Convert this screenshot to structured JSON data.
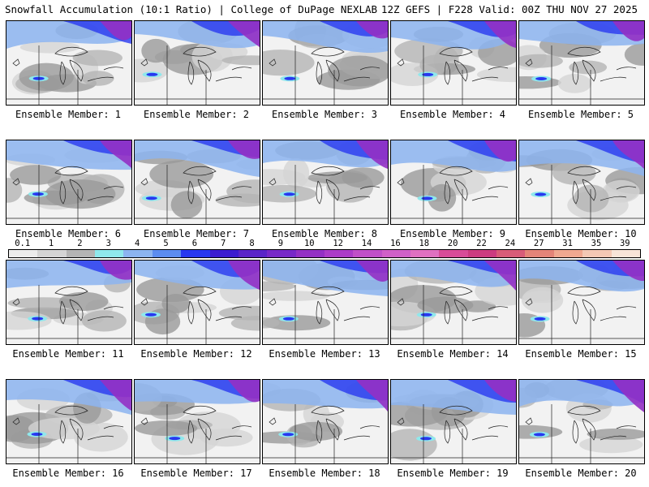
{
  "header": {
    "left_title": "Snowfall Accumulation (10:1 Ratio) | College of DuPage NEXLAB",
    "right_title": "12Z GEFS | F228 Valid: 00Z THU NOV 27 2025"
  },
  "members": [
    {
      "label": "Ensemble Member: 1"
    },
    {
      "label": "Ensemble Member: 2"
    },
    {
      "label": "Ensemble Member: 3"
    },
    {
      "label": "Ensemble Member: 4"
    },
    {
      "label": "Ensemble Member: 5"
    },
    {
      "label": "Ensemble Member: 6"
    },
    {
      "label": "Ensemble Member: 7"
    },
    {
      "label": "Ensemble Member: 8"
    },
    {
      "label": "Ensemble Member: 9"
    },
    {
      "label": "Ensemble Member: 10"
    },
    {
      "label": "Ensemble Member: 11"
    },
    {
      "label": "Ensemble Member: 12"
    },
    {
      "label": "Ensemble Member: 13"
    },
    {
      "label": "Ensemble Member: 14"
    },
    {
      "label": "Ensemble Member: 15"
    },
    {
      "label": "Ensemble Member: 16"
    },
    {
      "label": "Ensemble Member: 17"
    },
    {
      "label": "Ensemble Member: 18"
    },
    {
      "label": "Ensemble Member: 19"
    },
    {
      "label": "Ensemble Member: 20"
    }
  ],
  "scale": {
    "labels": [
      "0.1",
      "1",
      "2",
      "3",
      "4",
      "5",
      "6",
      "7",
      "8",
      "9",
      "10",
      "12",
      "14",
      "16",
      "18",
      "20",
      "22",
      "24",
      "27",
      "31",
      "35",
      "39"
    ],
    "colors": [
      "#ececec",
      "#d4d4d4",
      "#b4b4b4",
      "#8fe8ec",
      "#8cb4f0",
      "#5c8cf0",
      "#2838f0",
      "#3c1cd0",
      "#5a24c8",
      "#7828c8",
      "#9430c4",
      "#ac3cc8",
      "#c050c8",
      "#d060c8",
      "#e070c0",
      "#d84c98",
      "#cc3c80",
      "#d85c78",
      "#e48478",
      "#f0a890",
      "#f4c8b4",
      "#f8e4d8"
    ]
  }
}
